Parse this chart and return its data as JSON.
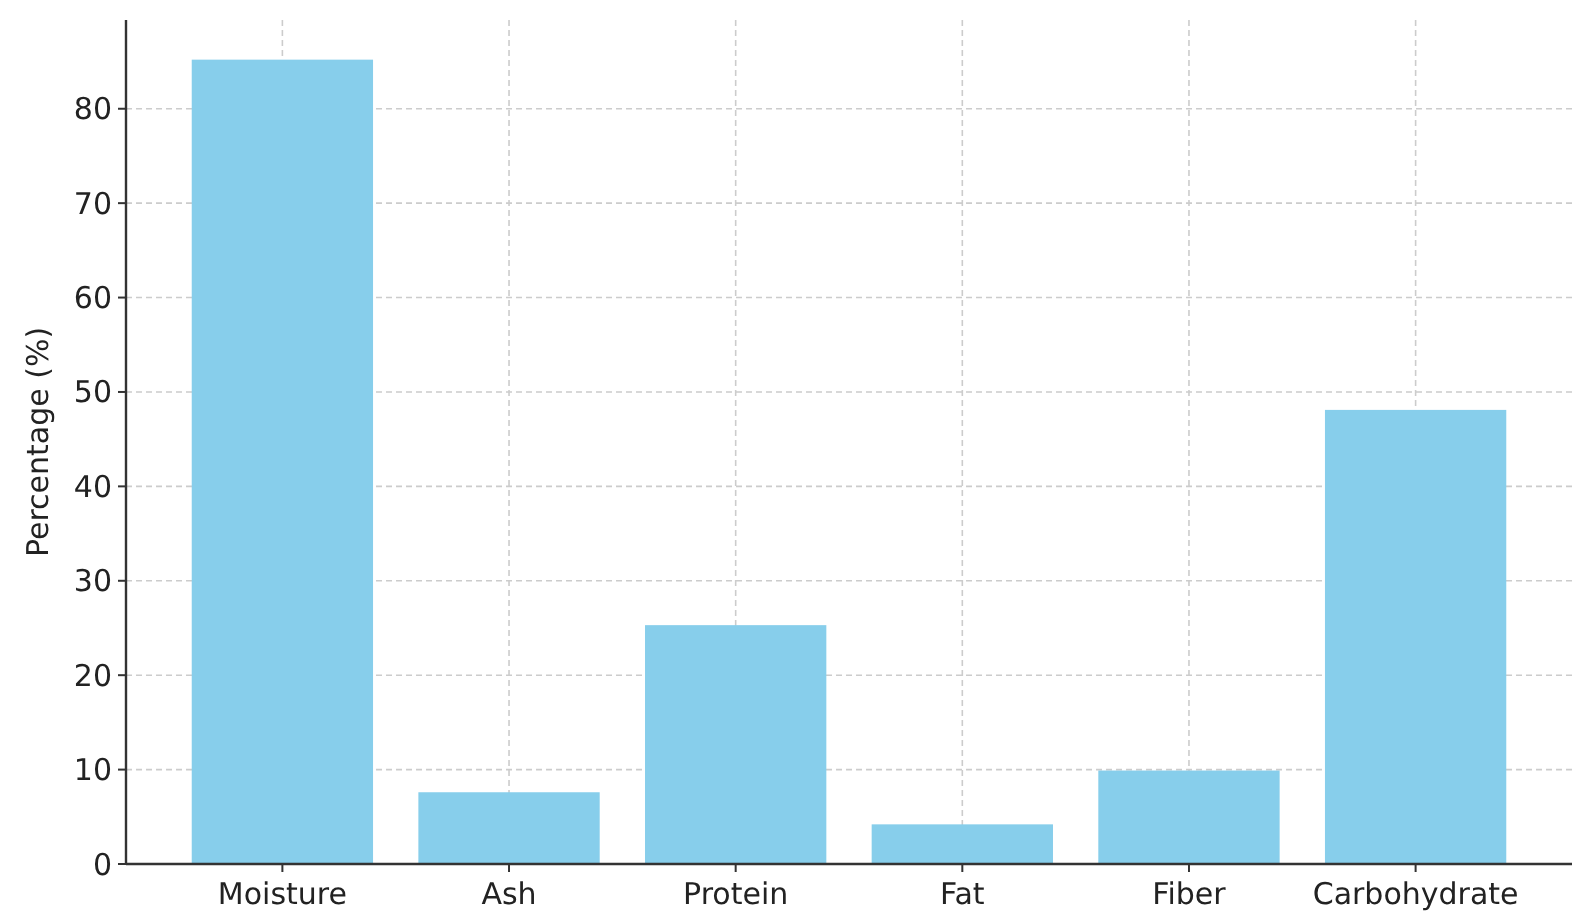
{
  "chart_data": {
    "type": "bar",
    "ylabel": "Percentage (%)",
    "categories": [
      "Moisture",
      "Ash",
      "Protein",
      "Fat",
      "Fiber",
      "Carbohydrate"
    ],
    "values": [
      85.2,
      7.6,
      25.3,
      4.2,
      9.9,
      48.1
    ],
    "color": "#87ceeb",
    "ylim": [
      0,
      89.4
    ],
    "yticks": [
      0,
      10,
      20,
      30,
      40,
      50,
      60,
      70,
      80
    ],
    "grid": true
  }
}
